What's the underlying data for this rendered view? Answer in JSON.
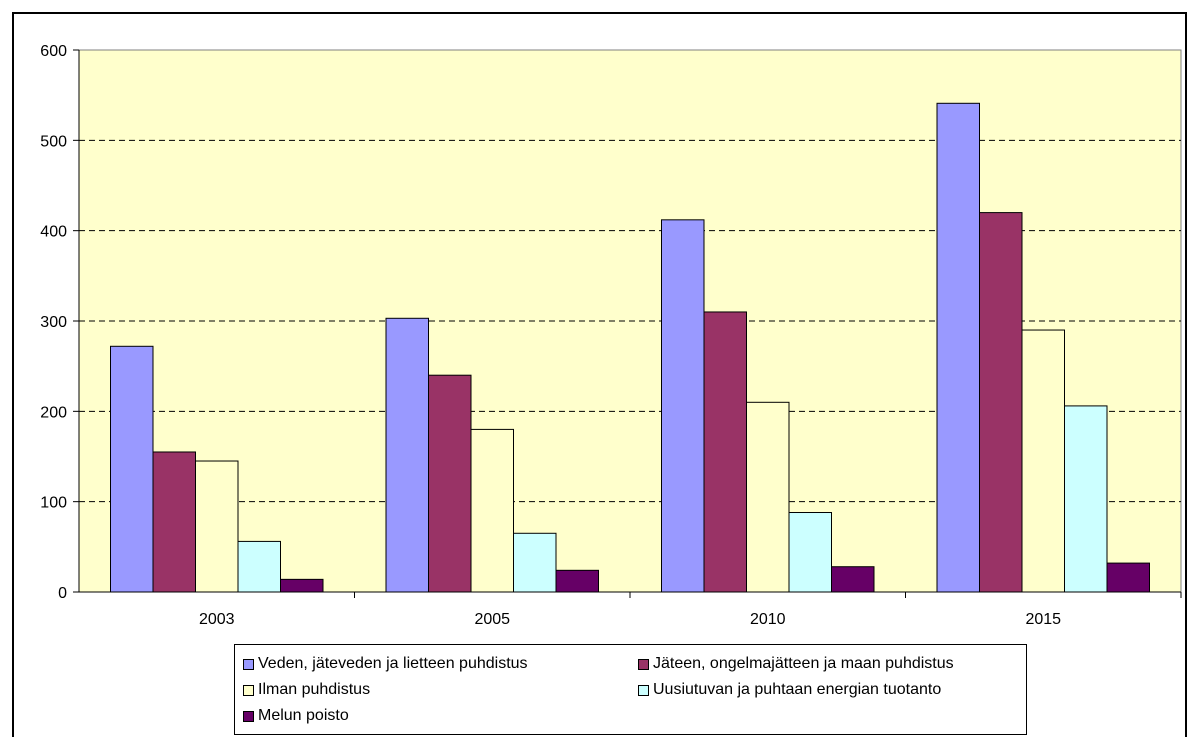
{
  "chart_data": {
    "type": "bar",
    "categories": [
      "2003",
      "2005",
      "2010",
      "2015"
    ],
    "series": [
      {
        "name": "Veden, jäteveden ja lietteen puhdistus",
        "color": "#9999ff",
        "values": [
          272,
          303,
          412,
          541
        ]
      },
      {
        "name": "Jäteen, ongelmajätteen ja maan puhdistus",
        "color": "#993366",
        "values": [
          155,
          240,
          310,
          420
        ]
      },
      {
        "name": "Ilman puhdistus",
        "color": "#ffffcc",
        "values": [
          145,
          180,
          210,
          290
        ]
      },
      {
        "name": "Uusiutuvan ja puhtaan energian tuotanto",
        "color": "#ccffff",
        "values": [
          56,
          65,
          88,
          206
        ]
      },
      {
        "name": "Melun poisto",
        "color": "#660066",
        "values": [
          14,
          24,
          28,
          32
        ]
      }
    ],
    "ylim": [
      0,
      600
    ],
    "yticks": [
      0,
      100,
      200,
      300,
      400,
      500,
      600
    ],
    "grid": true,
    "plot_background": "#ffffcc",
    "legend_position": "bottom"
  }
}
